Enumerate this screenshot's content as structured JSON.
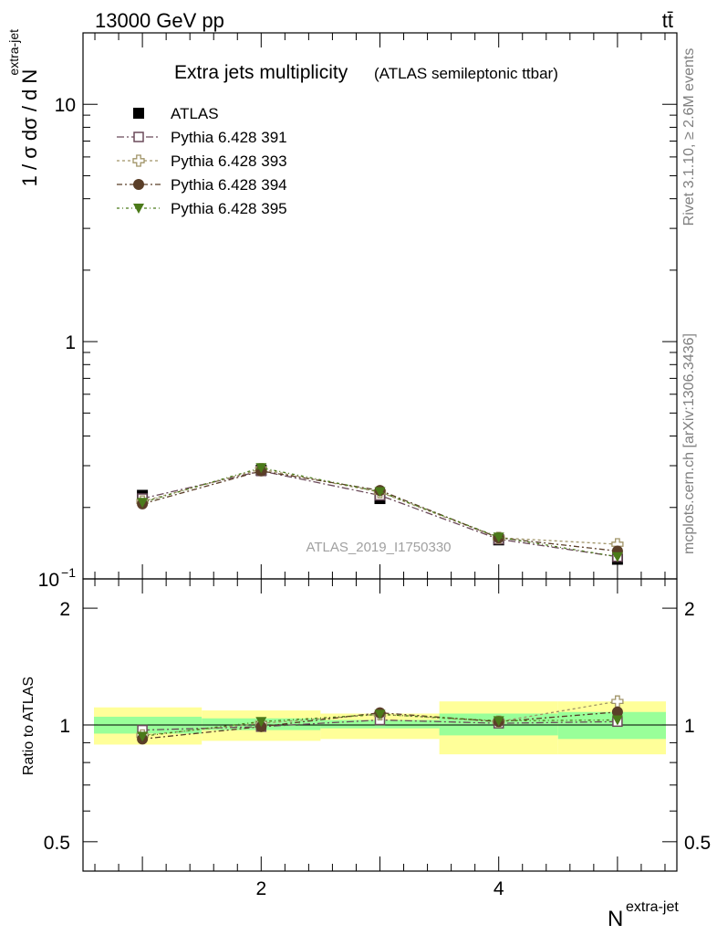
{
  "header": {
    "left": "13000 GeV pp",
    "right": "tt̄"
  },
  "side_labels": {
    "rivet": "Rivet 3.1.10, ≥ 2.6M events",
    "mcplots": "mcplots.cern.ch [arXiv:1306.3436]"
  },
  "colors": {
    "atlas": "#000000",
    "s391": "#6b4a5a",
    "s393": "#a09468",
    "s394": "#5a3e28",
    "s395": "#4b7a1a",
    "band_inner": "#99ff99",
    "band_outer": "#ffff99"
  },
  "chart_data": [
    {
      "type": "line",
      "title": "Extra jets multiplicity",
      "subtitle": "(ATLAS semileptonic ttbar)",
      "ylabel_base": "1 / σ dσ / d N",
      "ylabel_sup": "extra-jet",
      "watermark": "ATLAS_2019_I1750330",
      "yscale": "log",
      "ylim": [
        0.1,
        20
      ],
      "xlim": [
        0.5,
        5.5
      ],
      "yticks": [
        {
          "value": 10,
          "label": "10"
        },
        {
          "value": 1,
          "label": "1"
        },
        {
          "value": 0.1,
          "label": "10",
          "sup": "−1"
        }
      ],
      "x": [
        1,
        2,
        3,
        4,
        5
      ],
      "series": [
        {
          "name": "ATLAS",
          "key": "atlas",
          "marker": "square-filled",
          "values": [
            0.225,
            0.287,
            0.218,
            0.146,
            0.121
          ]
        },
        {
          "name": "Pythia 6.428 391",
          "key": "s391",
          "marker": "square-open",
          "values": [
            0.218,
            0.285,
            0.225,
            0.147,
            0.124
          ]
        },
        {
          "name": "Pythia 6.428 393",
          "key": "s393",
          "marker": "cross-open",
          "values": [
            0.212,
            0.29,
            0.232,
            0.149,
            0.14
          ]
        },
        {
          "name": "Pythia 6.428 394",
          "key": "s394",
          "marker": "circle-filled",
          "values": [
            0.207,
            0.285,
            0.236,
            0.149,
            0.131
          ]
        },
        {
          "name": "Pythia 6.428 395",
          "key": "s395",
          "marker": "triangle-down-filled",
          "values": [
            0.21,
            0.294,
            0.233,
            0.15,
            0.124
          ]
        }
      ]
    },
    {
      "type": "line",
      "ylabel": "Ratio to ATLAS",
      "xlabel_base": "N",
      "xlabel_sup": "extra-jet",
      "yscale": "log",
      "ylim": [
        0.42,
        2.38
      ],
      "xlim": [
        0.5,
        5.5
      ],
      "yticks": [
        {
          "value": 2,
          "label": "2"
        },
        {
          "value": 1,
          "label": "1"
        },
        {
          "value": 0.5,
          "label": "0.5"
        }
      ],
      "xticks": [
        {
          "value": 2,
          "label": "2"
        },
        {
          "value": 4,
          "label": "4"
        }
      ],
      "bands": [
        {
          "xlo": 0.5,
          "xhi": 1.5,
          "inner": [
            0.95,
            1.05
          ],
          "outer": [
            0.89,
            1.11
          ]
        },
        {
          "xlo": 1.5,
          "xhi": 2.5,
          "inner": [
            0.97,
            1.04
          ],
          "outer": [
            0.91,
            1.09
          ]
        },
        {
          "xlo": 2.5,
          "xhi": 3.5,
          "inner": [
            0.98,
            1.03
          ],
          "outer": [
            0.92,
            1.07
          ]
        },
        {
          "xlo": 3.5,
          "xhi": 4.5,
          "inner": [
            0.94,
            1.07
          ],
          "outer": [
            0.84,
            1.15
          ]
        },
        {
          "xlo": 4.5,
          "xhi": 5.5,
          "inner": [
            0.92,
            1.08
          ],
          "outer": [
            0.84,
            1.15
          ]
        }
      ],
      "x": [
        1,
        2,
        3,
        4,
        5
      ],
      "series": [
        {
          "name": "Pythia 6.428 391",
          "key": "s391",
          "marker": "square-open",
          "values": [
            0.97,
            0.99,
            1.03,
            1.01,
            1.02
          ]
        },
        {
          "name": "Pythia 6.428 393",
          "key": "s393",
          "marker": "cross-open",
          "values": [
            0.94,
            1.01,
            1.065,
            1.02,
            1.15
          ]
        },
        {
          "name": "Pythia 6.428 394",
          "key": "s394",
          "marker": "circle-filled",
          "values": [
            0.92,
            0.99,
            1.075,
            1.02,
            1.08
          ]
        },
        {
          "name": "Pythia 6.428 395",
          "key": "s395",
          "marker": "triangle-down-filled",
          "values": [
            0.935,
            1.02,
            1.065,
            1.025,
            1.03
          ]
        }
      ]
    }
  ]
}
